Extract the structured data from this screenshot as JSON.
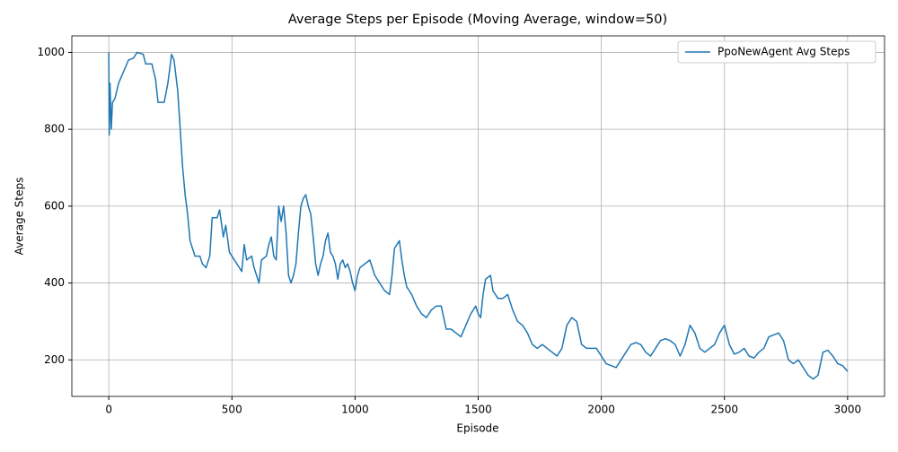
{
  "chart_data": {
    "type": "line",
    "title": "Average Steps per Episode (Moving Average, window=50)",
    "x_label": "Episode",
    "y_label": "Average Steps",
    "x": [
      0,
      2,
      5,
      10,
      15,
      25,
      40,
      60,
      80,
      100,
      115,
      140,
      150,
      175,
      190,
      200,
      225,
      240,
      255,
      265,
      280,
      290,
      300,
      310,
      320,
      330,
      340,
      350,
      370,
      380,
      395,
      410,
      420,
      440,
      450,
      465,
      475,
      490,
      500,
      520,
      540,
      550,
      560,
      580,
      590,
      600,
      610,
      620,
      640,
      650,
      660,
      670,
      680,
      690,
      700,
      710,
      720,
      730,
      740,
      750,
      760,
      770,
      780,
      790,
      800,
      810,
      820,
      830,
      840,
      850,
      860,
      870,
      880,
      890,
      900,
      910,
      920,
      930,
      940,
      950,
      960,
      970,
      980,
      990,
      1000,
      1010,
      1020,
      1040,
      1060,
      1080,
      1100,
      1120,
      1140,
      1150,
      1160,
      1170,
      1180,
      1190,
      1200,
      1210,
      1230,
      1250,
      1270,
      1290,
      1310,
      1330,
      1350,
      1370,
      1390,
      1410,
      1430,
      1450,
      1470,
      1490,
      1500,
      1510,
      1520,
      1530,
      1550,
      1560,
      1580,
      1600,
      1620,
      1640,
      1660,
      1680,
      1700,
      1720,
      1740,
      1760,
      1780,
      1800,
      1820,
      1840,
      1860,
      1880,
      1900,
      1920,
      1940,
      1960,
      1980,
      2000,
      2020,
      2040,
      2060,
      2080,
      2100,
      2120,
      2140,
      2160,
      2180,
      2200,
      2220,
      2240,
      2260,
      2280,
      2300,
      2320,
      2340,
      2360,
      2380,
      2400,
      2420,
      2440,
      2460,
      2480,
      2500,
      2520,
      2540,
      2560,
      2580,
      2600,
      2620,
      2640,
      2660,
      2680,
      2700,
      2720,
      2740,
      2760,
      2780,
      2800,
      2820,
      2840,
      2860,
      2880,
      2900,
      2920,
      2940,
      2960,
      2980,
      3000
    ],
    "series": [
      {
        "name": "PpoNewAgent Avg Steps",
        "color": "#1f77b4",
        "values": [
          1000,
          785,
          920,
          800,
          870,
          880,
          920,
          950,
          980,
          985,
          1000,
          995,
          970,
          970,
          930,
          870,
          870,
          920,
          995,
          980,
          900,
          800,
          700,
          630,
          580,
          510,
          490,
          470,
          470,
          450,
          440,
          470,
          570,
          570,
          590,
          520,
          550,
          480,
          470,
          450,
          430,
          500,
          460,
          470,
          440,
          420,
          400,
          460,
          470,
          500,
          520,
          470,
          460,
          600,
          560,
          600,
          530,
          420,
          400,
          420,
          450,
          530,
          600,
          620,
          630,
          600,
          580,
          520,
          450,
          420,
          450,
          470,
          510,
          530,
          480,
          470,
          450,
          410,
          450,
          460,
          440,
          450,
          430,
          400,
          380,
          420,
          440,
          450,
          460,
          420,
          400,
          380,
          370,
          420,
          490,
          500,
          510,
          460,
          420,
          390,
          370,
          340,
          320,
          310,
          330,
          340,
          340,
          280,
          280,
          270,
          260,
          290,
          320,
          340,
          320,
          310,
          370,
          410,
          420,
          380,
          360,
          360,
          370,
          330,
          300,
          290,
          270,
          240,
          230,
          240,
          230,
          220,
          210,
          230,
          290,
          310,
          300,
          240,
          230,
          230,
          230,
          210,
          190,
          185,
          180,
          200,
          220,
          240,
          245,
          240,
          220,
          210,
          230,
          250,
          255,
          250,
          240,
          210,
          240,
          290,
          270,
          230,
          220,
          230,
          240,
          270,
          290,
          240,
          215,
          220,
          230,
          210,
          205,
          220,
          230,
          260,
          265,
          270,
          250,
          200,
          190,
          200,
          180,
          160,
          150,
          160,
          220,
          225,
          210,
          190,
          185,
          170
        ]
      }
    ],
    "xlim": [
      -150,
      3150
    ],
    "ylim": [
      105,
      1043
    ],
    "xticks": [
      0,
      500,
      1000,
      1500,
      2000,
      2500,
      3000
    ],
    "yticks": [
      200,
      400,
      600,
      800,
      1000
    ],
    "grid": true,
    "legend": "upper right"
  }
}
